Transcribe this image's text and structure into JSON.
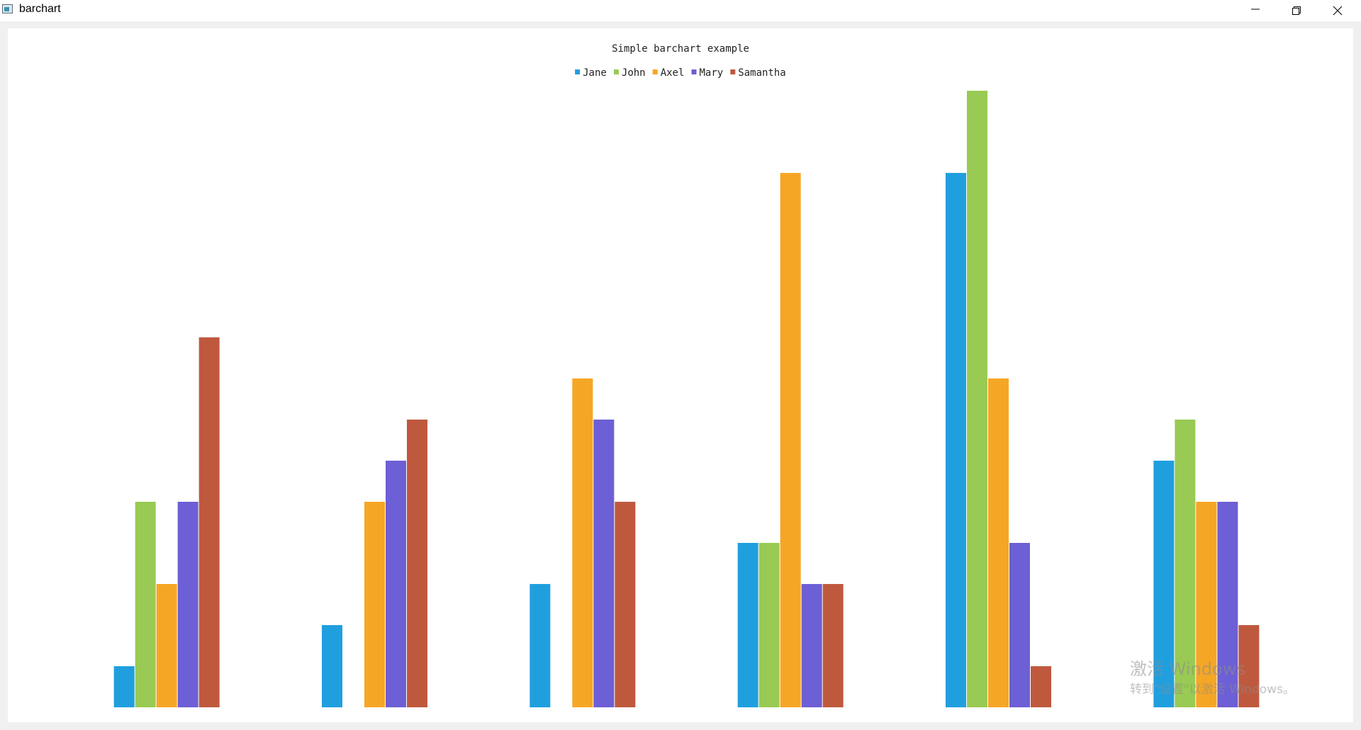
{
  "window": {
    "title": "barchart",
    "icons": {
      "app": "app-window-icon",
      "minimize": "minimize-icon",
      "restore": "restore-icon",
      "close": "close-icon"
    }
  },
  "chart_data": {
    "type": "bar",
    "title": "Simple barchart example",
    "categories": [
      "",
      "",
      "",
      "",
      "",
      ""
    ],
    "xlabel": "",
    "ylabel": "",
    "ylim": [
      0,
      15
    ],
    "grid": false,
    "axes_visible": false,
    "legend": "top-center",
    "series": [
      {
        "name": "Jane",
        "color": "#209fdf",
        "values": [
          1,
          2,
          3,
          4,
          13,
          6
        ]
      },
      {
        "name": "John",
        "color": "#99ca53",
        "values": [
          5,
          0,
          0,
          4,
          15,
          7
        ]
      },
      {
        "name": "Axel",
        "color": "#f6a625",
        "values": [
          3,
          5,
          8,
          13,
          8,
          5
        ]
      },
      {
        "name": "Mary",
        "color": "#6d5fd5",
        "values": [
          5,
          6,
          7,
          3,
          4,
          5
        ]
      },
      {
        "name": "Samantha",
        "color": "#bf593e",
        "values": [
          9,
          7,
          5,
          3,
          1,
          2
        ]
      }
    ]
  },
  "watermark": {
    "title": "激活 Windows",
    "subtitle": "转到\"设置\"以激活 Windows。"
  }
}
